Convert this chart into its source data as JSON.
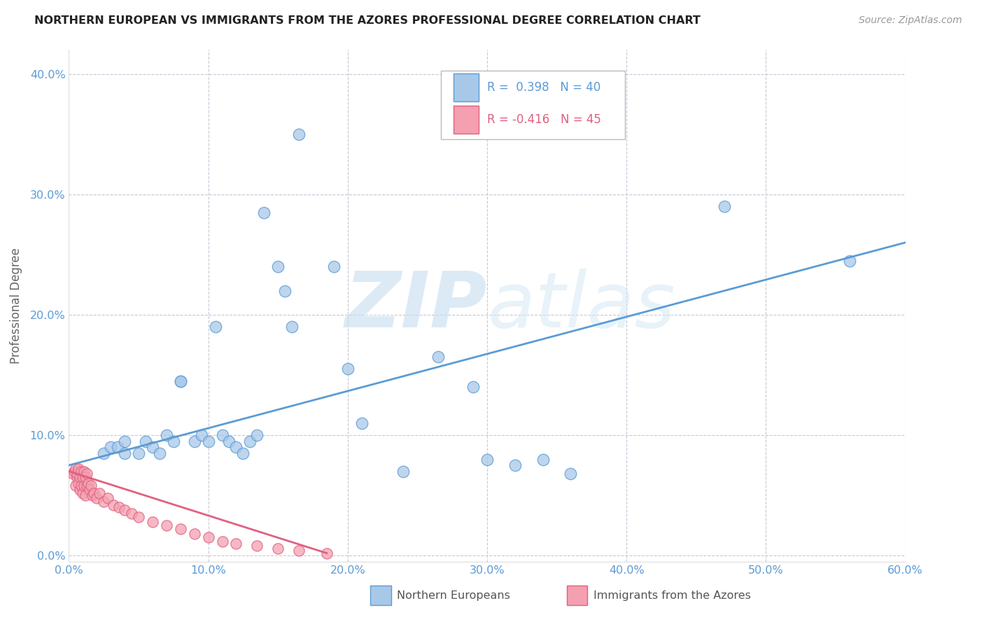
{
  "title": "NORTHERN EUROPEAN VS IMMIGRANTS FROM THE AZORES PROFESSIONAL DEGREE CORRELATION CHART",
  "source": "Source: ZipAtlas.com",
  "ylabel": "Professional Degree",
  "xlim": [
    0.0,
    0.6
  ],
  "ylim": [
    -0.005,
    0.42
  ],
  "yticks": [
    0.0,
    0.1,
    0.2,
    0.3,
    0.4
  ],
  "xticks": [
    0.0,
    0.1,
    0.2,
    0.3,
    0.4,
    0.5,
    0.6
  ],
  "legend1_R": "0.398",
  "legend1_N": "40",
  "legend2_R": "-0.416",
  "legend2_N": "45",
  "blue_color": "#a8c8e8",
  "pink_color": "#f4a0b0",
  "blue_edge_color": "#5b9bd5",
  "pink_edge_color": "#e06080",
  "blue_line_color": "#5b9bd5",
  "pink_line_color": "#e06080",
  "axis_color": "#5b9bd5",
  "grid_color": "#c8c8d8",
  "blue_scatter_x": [
    0.025,
    0.03,
    0.035,
    0.04,
    0.04,
    0.05,
    0.055,
    0.06,
    0.065,
    0.07,
    0.075,
    0.08,
    0.08,
    0.09,
    0.095,
    0.1,
    0.105,
    0.11,
    0.115,
    0.12,
    0.125,
    0.13,
    0.135,
    0.14,
    0.15,
    0.155,
    0.16,
    0.165,
    0.19,
    0.2,
    0.21,
    0.24,
    0.265,
    0.29,
    0.3,
    0.32,
    0.34,
    0.36,
    0.47,
    0.56
  ],
  "blue_scatter_y": [
    0.085,
    0.09,
    0.09,
    0.085,
    0.095,
    0.085,
    0.095,
    0.09,
    0.085,
    0.1,
    0.095,
    0.145,
    0.145,
    0.095,
    0.1,
    0.095,
    0.19,
    0.1,
    0.095,
    0.09,
    0.085,
    0.095,
    0.1,
    0.285,
    0.24,
    0.22,
    0.19,
    0.35,
    0.24,
    0.155,
    0.11,
    0.07,
    0.165,
    0.14,
    0.08,
    0.075,
    0.08,
    0.068,
    0.29,
    0.245
  ],
  "pink_scatter_x": [
    0.003,
    0.004,
    0.005,
    0.005,
    0.006,
    0.006,
    0.007,
    0.007,
    0.008,
    0.008,
    0.009,
    0.009,
    0.01,
    0.01,
    0.011,
    0.011,
    0.012,
    0.012,
    0.013,
    0.013,
    0.014,
    0.015,
    0.016,
    0.017,
    0.018,
    0.02,
    0.022,
    0.025,
    0.028,
    0.032,
    0.036,
    0.04,
    0.045,
    0.05,
    0.06,
    0.07,
    0.08,
    0.09,
    0.1,
    0.11,
    0.12,
    0.135,
    0.15,
    0.165,
    0.185
  ],
  "pink_scatter_y": [
    0.068,
    0.07,
    0.058,
    0.072,
    0.065,
    0.068,
    0.06,
    0.072,
    0.055,
    0.065,
    0.058,
    0.07,
    0.052,
    0.065,
    0.058,
    0.07,
    0.05,
    0.065,
    0.058,
    0.068,
    0.06,
    0.055,
    0.058,
    0.05,
    0.052,
    0.048,
    0.052,
    0.045,
    0.048,
    0.042,
    0.04,
    0.038,
    0.035,
    0.032,
    0.028,
    0.025,
    0.022,
    0.018,
    0.015,
    0.012,
    0.01,
    0.008,
    0.006,
    0.004,
    0.002
  ],
  "blue_trend_x": [
    0.0,
    0.6
  ],
  "blue_trend_y": [
    0.075,
    0.26
  ],
  "pink_trend_x": [
    0.0,
    0.185
  ],
  "pink_trend_y": [
    0.07,
    0.002
  ]
}
